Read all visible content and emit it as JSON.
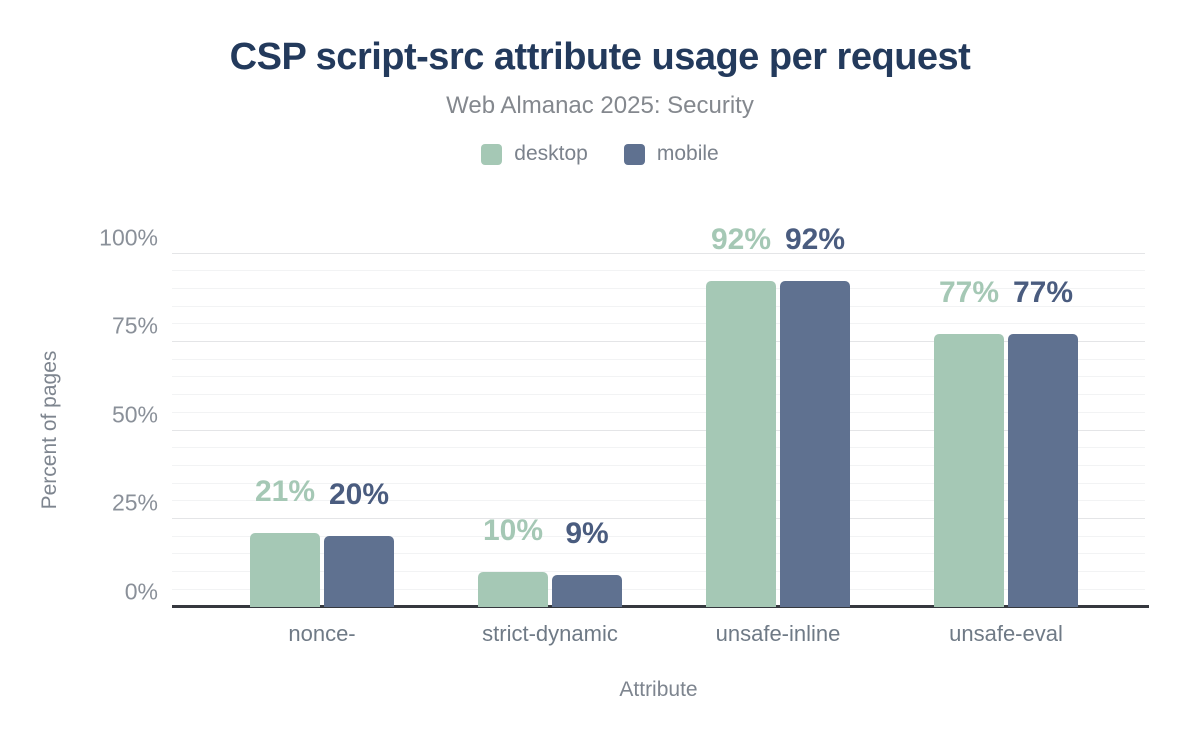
{
  "chart_data": {
    "type": "bar",
    "title": "CSP script-src attribute usage per request",
    "subtitle": "Web Almanac 2025: Security",
    "xlabel": "Attribute",
    "ylabel": "Percent of pages",
    "categories": [
      "nonce-",
      "strict-dynamic",
      "unsafe-inline",
      "unsafe-eval"
    ],
    "series": [
      {
        "name": "desktop",
        "color": "#a5c8b5",
        "label_color": "#a5c8b5",
        "values": [
          21,
          10,
          92,
          77
        ],
        "labels": [
          "21%",
          "10%",
          "92%",
          "77%"
        ]
      },
      {
        "name": "mobile",
        "color": "#5f7190",
        "label_color": "#4a5c7f",
        "values": [
          20,
          9,
          92,
          77
        ],
        "labels": [
          "20%",
          "9%",
          "92%",
          "77%"
        ]
      }
    ],
    "ylim": [
      0,
      100
    ],
    "yticks": [
      {
        "value": 0,
        "label": "0%"
      },
      {
        "value": 25,
        "label": "25%"
      },
      {
        "value": 50,
        "label": "50%"
      },
      {
        "value": 75,
        "label": "75%"
      },
      {
        "value": 100,
        "label": "100%"
      }
    ],
    "grid": {
      "on": true,
      "major_every": 25,
      "minor_every": 5
    },
    "legend_position": "top"
  },
  "theme": {
    "bg": "#ffffff",
    "title_color": "#233a5c",
    "subtitle_color": "#84888e",
    "tick_color": "#8a9099",
    "category_color": "#6f7a86",
    "axis_title_color": "#7e858f",
    "grid_major": "#e4e5e7",
    "grid_minor": "#f2f3f4",
    "baseline_color": "#35383e",
    "desktop_color": "#a5c8b5",
    "mobile_color": "#5f7190",
    "desktop_label_color": "#a5c8b5",
    "mobile_label_color": "#4a5c7f"
  }
}
